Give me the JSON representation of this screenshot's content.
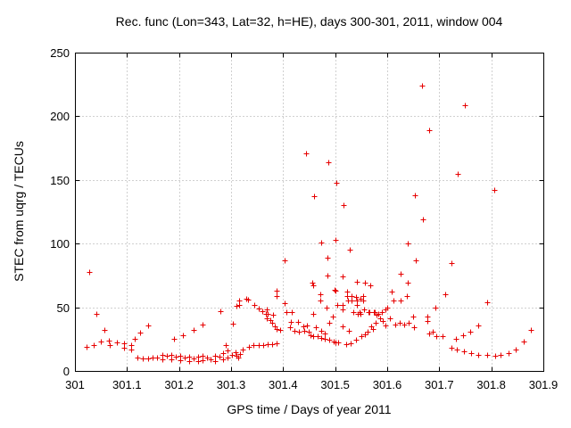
{
  "chart": {
    "title": "Rec. func (Lon=343, Lat=32, h=HE), days 300-301, 2011, window 004",
    "xlabel": "GPS time / Days of year 2011",
    "ylabel": "STEC from uqrg / TECUs"
  },
  "colors": {
    "marker": "#e60000",
    "grid": "#a0a0a0",
    "border": "#000000",
    "background": "#ffffff",
    "text": "#000000"
  },
  "chart_data": {
    "type": "scatter",
    "marker_style": "plus",
    "title": "Rec. func (Lon=343, Lat=32, h=HE), days 300-301, 2011, window 004",
    "xlabel": "GPS time / Days of year 2011",
    "ylabel": "STEC from uqrg / TECUs",
    "xlim": [
      301,
      301.9
    ],
    "ylim": [
      0,
      250
    ],
    "grid": true,
    "legend": null,
    "x_ticks": [
      301,
      301.1,
      301.2,
      301.3,
      301.4,
      301.5,
      301.6,
      301.7,
      301.8,
      301.9
    ],
    "x_tick_labels": [
      "301",
      "301.1",
      "301.2",
      "301.3",
      "301.4",
      "301.5",
      "301.6",
      "301.7",
      "301.8",
      "301.9"
    ],
    "y_ticks": [
      0,
      50,
      100,
      150,
      200,
      250
    ],
    "y_tick_labels": [
      "0",
      "50",
      "100",
      "150",
      "200",
      "250"
    ],
    "series": [
      {
        "name": "STEC",
        "color": "#e60000",
        "points": [
          [
            301.022,
            19
          ],
          [
            301.027,
            78
          ],
          [
            301.036,
            20
          ],
          [
            301.041,
            45
          ],
          [
            301.05,
            23
          ],
          [
            301.057,
            32
          ],
          [
            301.065,
            24
          ],
          [
            301.067,
            20
          ],
          [
            301.081,
            22.5
          ],
          [
            301.094,
            22
          ],
          [
            301.094,
            18
          ],
          [
            301.108,
            20.5
          ],
          [
            301.108,
            17
          ],
          [
            301.115,
            25
          ],
          [
            301.12,
            10.5
          ],
          [
            301.125,
            30
          ],
          [
            301.13,
            10
          ],
          [
            301.141,
            36
          ],
          [
            301.141,
            10
          ],
          [
            301.149,
            10.5
          ],
          [
            301.158,
            10.5
          ],
          [
            301.168,
            12.5
          ],
          [
            301.168,
            9
          ],
          [
            301.177,
            12
          ],
          [
            301.185,
            12.5
          ],
          [
            301.185,
            9
          ],
          [
            301.19,
            25.5
          ],
          [
            301.194,
            11.5
          ],
          [
            301.202,
            12
          ],
          [
            301.202,
            8.5
          ],
          [
            301.207,
            28
          ],
          [
            301.211,
            10.5
          ],
          [
            301.219,
            11.5
          ],
          [
            301.219,
            8
          ],
          [
            301.228,
            32.5
          ],
          [
            301.228,
            10
          ],
          [
            301.237,
            11.5
          ],
          [
            301.237,
            8
          ],
          [
            301.245,
            36.5
          ],
          [
            301.245,
            12
          ],
          [
            301.245,
            8.5
          ],
          [
            301.254,
            10.5
          ],
          [
            301.261,
            9
          ],
          [
            301.269,
            12
          ],
          [
            301.269,
            8
          ],
          [
            301.278,
            11.5
          ],
          [
            301.279,
            47
          ],
          [
            301.285,
            14
          ],
          [
            301.285,
            9
          ],
          [
            301.29,
            20
          ],
          [
            301.293,
            16
          ],
          [
            301.293,
            10.5
          ],
          [
            301.302,
            12.5
          ],
          [
            301.303,
            37
          ],
          [
            301.309,
            15
          ],
          [
            301.31,
            51
          ],
          [
            301.31,
            12
          ],
          [
            301.314,
            10.5
          ],
          [
            301.315,
            55.5
          ],
          [
            301.315,
            52
          ],
          [
            301.317,
            13.5
          ],
          [
            301.322,
            17
          ],
          [
            301.329,
            57
          ],
          [
            301.333,
            56
          ],
          [
            301.334,
            19
          ],
          [
            301.343,
            20
          ],
          [
            301.345,
            52
          ],
          [
            301.353,
            49
          ],
          [
            301.353,
            20.5
          ],
          [
            301.36,
            47
          ],
          [
            301.362,
            20.5
          ],
          [
            301.367,
            45
          ],
          [
            301.369,
            48
          ],
          [
            301.369,
            41.5
          ],
          [
            301.37,
            45
          ],
          [
            301.37,
            21
          ],
          [
            301.375,
            40
          ],
          [
            301.379,
            37.5
          ],
          [
            301.379,
            21
          ],
          [
            301.381,
            44
          ],
          [
            301.384,
            35
          ],
          [
            301.387,
            63
          ],
          [
            301.387,
            59
          ],
          [
            301.387,
            33
          ],
          [
            301.387,
            22
          ],
          [
            301.394,
            32.5
          ],
          [
            301.403,
            87
          ],
          [
            301.403,
            53.5
          ],
          [
            301.406,
            46.5
          ],
          [
            301.413,
            34.5
          ],
          [
            301.415,
            38.5
          ],
          [
            301.417,
            46.5
          ],
          [
            301.422,
            31.5
          ],
          [
            301.429,
            38.5
          ],
          [
            301.43,
            30.5
          ],
          [
            301.439,
            35
          ],
          [
            301.441,
            31.5
          ],
          [
            301.444,
            171
          ],
          [
            301.446,
            36
          ],
          [
            301.449,
            30.5
          ],
          [
            301.453,
            28
          ],
          [
            301.456,
            69
          ],
          [
            301.458,
            67
          ],
          [
            301.458,
            45
          ],
          [
            301.458,
            27
          ],
          [
            301.459,
            137
          ],
          [
            301.463,
            34
          ],
          [
            301.466,
            27.5
          ],
          [
            301.471,
            60
          ],
          [
            301.471,
            55
          ],
          [
            301.473,
            101
          ],
          [
            301.473,
            31.5
          ],
          [
            301.473,
            26
          ],
          [
            301.48,
            29.5
          ],
          [
            301.48,
            25.5
          ],
          [
            301.483,
            50
          ],
          [
            301.485,
            89
          ],
          [
            301.485,
            75
          ],
          [
            301.487,
            164
          ],
          [
            301.489,
            38
          ],
          [
            301.489,
            24.5
          ],
          [
            301.495,
            42.5
          ],
          [
            301.497,
            23
          ],
          [
            301.499,
            64
          ],
          [
            301.501,
            103
          ],
          [
            301.501,
            63
          ],
          [
            301.501,
            22.5
          ],
          [
            301.502,
            148
          ],
          [
            301.504,
            51.5
          ],
          [
            301.506,
            22.5
          ],
          [
            301.514,
            74
          ],
          [
            301.514,
            52
          ],
          [
            301.514,
            48
          ],
          [
            301.514,
            35
          ],
          [
            301.516,
            130
          ],
          [
            301.521,
            21
          ],
          [
            301.523,
            62
          ],
          [
            301.523,
            58.5
          ],
          [
            301.525,
            55
          ],
          [
            301.526,
            31.5
          ],
          [
            301.528,
            95
          ],
          [
            301.53,
            22
          ],
          [
            301.531,
            59
          ],
          [
            301.531,
            55.5
          ],
          [
            301.535,
            46
          ],
          [
            301.54,
            58
          ],
          [
            301.54,
            24.5
          ],
          [
            301.542,
            70
          ],
          [
            301.542,
            55
          ],
          [
            301.542,
            52
          ],
          [
            301.543,
            44.5
          ],
          [
            301.547,
            46.5
          ],
          [
            301.549,
            56.5
          ],
          [
            301.549,
            45
          ],
          [
            301.55,
            27
          ],
          [
            301.554,
            59
          ],
          [
            301.554,
            55
          ],
          [
            301.555,
            48
          ],
          [
            301.557,
            69
          ],
          [
            301.557,
            29
          ],
          [
            301.562,
            30.5
          ],
          [
            301.564,
            46.5
          ],
          [
            301.566,
            46
          ],
          [
            301.568,
            67
          ],
          [
            301.569,
            35
          ],
          [
            301.573,
            33
          ],
          [
            301.574,
            46
          ],
          [
            301.576,
            46
          ],
          [
            301.578,
            37.5
          ],
          [
            301.579,
            44
          ],
          [
            301.583,
            44.5
          ],
          [
            301.586,
            41.5
          ],
          [
            301.59,
            46.5
          ],
          [
            301.591,
            39
          ],
          [
            301.597,
            48
          ],
          [
            301.597,
            36
          ],
          [
            301.6,
            49.5
          ],
          [
            301.605,
            41
          ],
          [
            301.609,
            62
          ],
          [
            301.612,
            55
          ],
          [
            301.615,
            36.5
          ],
          [
            301.624,
            37.5
          ],
          [
            301.626,
            76
          ],
          [
            301.626,
            55.5
          ],
          [
            301.632,
            36.5
          ],
          [
            301.638,
            58.5
          ],
          [
            301.64,
            100
          ],
          [
            301.64,
            69
          ],
          [
            301.641,
            37.5
          ],
          [
            301.65,
            42.5
          ],
          [
            301.651,
            34
          ],
          [
            301.653,
            138
          ],
          [
            301.655,
            87
          ],
          [
            301.667,
            224
          ],
          [
            301.669,
            119
          ],
          [
            301.677,
            43
          ],
          [
            301.677,
            39.5
          ],
          [
            301.68,
            29.5
          ],
          [
            301.681,
            189
          ],
          [
            301.687,
            30.5
          ],
          [
            301.693,
            50
          ],
          [
            301.694,
            27.5
          ],
          [
            301.706,
            27
          ],
          [
            301.712,
            60.5
          ],
          [
            301.723,
            85
          ],
          [
            301.723,
            18
          ],
          [
            301.732,
            25.5
          ],
          [
            301.734,
            17
          ],
          [
            301.735,
            155
          ],
          [
            301.746,
            28
          ],
          [
            301.747,
            15.5
          ],
          [
            301.749,
            209
          ],
          [
            301.759,
            30.5
          ],
          [
            301.761,
            14
          ],
          [
            301.775,
            36
          ],
          [
            301.775,
            12.5
          ],
          [
            301.792,
            54
          ],
          [
            301.792,
            12.5
          ],
          [
            301.806,
            142
          ],
          [
            301.807,
            12
          ],
          [
            301.818,
            12.5
          ],
          [
            301.833,
            14
          ],
          [
            301.846,
            17
          ],
          [
            301.862,
            23
          ],
          [
            301.876,
            32.5
          ]
        ]
      }
    ]
  }
}
